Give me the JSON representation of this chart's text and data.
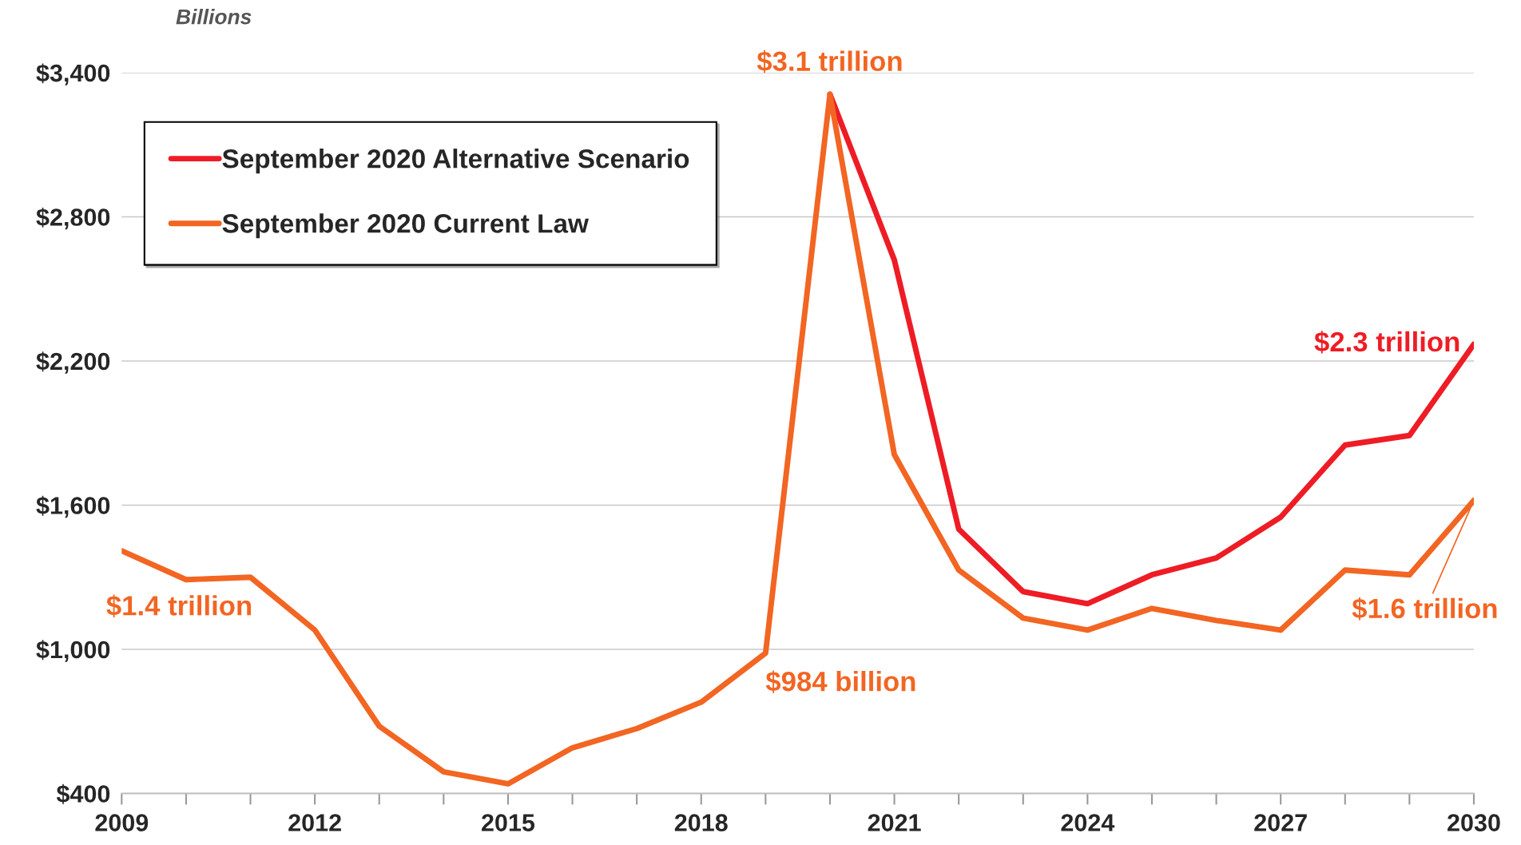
{
  "chart_data": {
    "type": "line",
    "ylabel": "Billions",
    "x": [
      2009,
      2010,
      2011,
      2012,
      2013,
      2014,
      2015,
      2016,
      2017,
      2018,
      2019,
      2020,
      2021,
      2022,
      2023,
      2024,
      2025,
      2026,
      2027,
      2028,
      2029,
      2030
    ],
    "series": [
      {
        "name": "September 2020 Alternative Scenario",
        "color": "#ee1c25",
        "x": [
          2020,
          2021,
          2022,
          2023,
          2024,
          2025,
          2026,
          2027,
          2028,
          2029,
          2030
        ],
        "values": [
          3310,
          2620,
          1500,
          1240,
          1190,
          1310,
          1380,
          1550,
          1850,
          1890,
          2270
        ]
      },
      {
        "name": "September 2020 Current Law",
        "color": "#f26522",
        "values": [
          1410,
          1290,
          1300,
          1080,
          680,
          490,
          440,
          590,
          670,
          780,
          984,
          3310,
          1810,
          1330,
          1130,
          1080,
          1170,
          1120,
          1080,
          1330,
          1310,
          1620
        ]
      }
    ],
    "xlim": [
      2009,
      2030
    ],
    "xticks": [
      2009,
      {
        "value": 2010,
        "label": null
      },
      {
        "value": 2011,
        "label": null
      },
      2012,
      {
        "value": 2013,
        "label": null
      },
      {
        "value": 2014,
        "label": null
      },
      2015,
      {
        "value": 2016,
        "label": null
      },
      {
        "value": 2017,
        "label": null
      },
      2018,
      {
        "value": 2019,
        "label": null
      },
      {
        "value": 2020,
        "label": null
      },
      2021,
      {
        "value": 2022,
        "label": null
      },
      {
        "value": 2023,
        "label": null
      },
      2024,
      {
        "value": 2025,
        "label": null
      },
      {
        "value": 2026,
        "label": null
      },
      2027,
      {
        "value": 2028,
        "label": null
      },
      {
        "value": 2029,
        "label": null
      },
      2030
    ],
    "ylim": [
      400,
      3400
    ],
    "yticks": [
      {
        "value": 400,
        "label": "$400"
      },
      {
        "value": 1000,
        "label": "$1,000"
      },
      {
        "value": 1600,
        "label": "$1,600"
      },
      {
        "value": 2200,
        "label": "$2,200"
      },
      {
        "value": 2800,
        "label": "$2,800"
      },
      {
        "value": 3400,
        "label": "$3,400"
      }
    ],
    "grid": "y",
    "legend": "top left",
    "marker": "none",
    "line_style": "solid",
    "annotations": [
      {
        "text": "$1.4 trillion",
        "x": 2009,
        "y": 1410
      },
      {
        "text": "$984 billion",
        "x": 2019,
        "y": 984
      },
      {
        "text": "$3.1 trillion",
        "x": 2020,
        "y": 3310
      },
      {
        "text": "$2.3 trillion",
        "x": 2030,
        "y": 2270
      },
      {
        "text": "$1.6 trillion",
        "x": 2030,
        "y": 1620
      }
    ]
  }
}
